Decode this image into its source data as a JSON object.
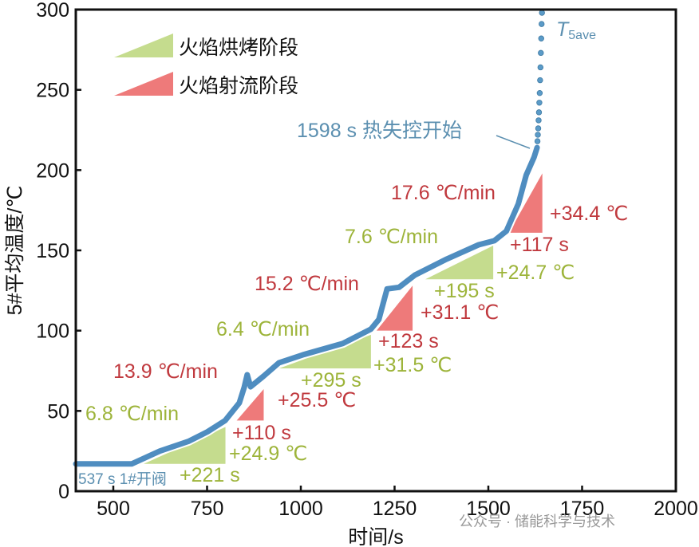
{
  "chart_data": {
    "type": "line",
    "xlabel": "时间/s",
    "ylabel": "5#平均温度/℃",
    "xlim": [
      400,
      2000
    ],
    "ylim": [
      0,
      300
    ],
    "xticks": [
      500,
      750,
      1000,
      1250,
      1500,
      1750,
      2000
    ],
    "yticks": [
      0,
      50,
      100,
      150,
      200,
      250,
      300
    ],
    "grid": false,
    "legend_position": "top-left",
    "legend": [
      {
        "label": "火焰烘烤阶段",
        "color": "#c5dc8e"
      },
      {
        "label": "火焰射流阶段",
        "color": "#ee7a7a"
      }
    ],
    "series": [
      {
        "name": "T5ave",
        "color": "#4f8dc0",
        "x": [
          400,
          549,
          624,
          700,
          751,
          798,
          836,
          849,
          857,
          866,
          900,
          942,
          1006,
          1112,
          1187,
          1208,
          1230,
          1262,
          1304,
          1389,
          1474,
          1516,
          1548,
          1580,
          1601,
          1622,
          1630
        ],
        "y": [
          17,
          17,
          25,
          31,
          37,
          44,
          55,
          64.6,
          72.5,
          65,
          71.5,
          80,
          85,
          92,
          101,
          107,
          126,
          127,
          134.6,
          144.6,
          153.5,
          156,
          162,
          179,
          197,
          208,
          214
        ],
        "dots_x": [
          1631,
          1632,
          1633,
          1634,
          1635,
          1636,
          1637,
          1638,
          1639,
          1640,
          1641,
          1642,
          1643
        ],
        "dots_y": [
          218,
          222,
          226,
          231,
          236,
          242,
          248,
          256,
          264,
          273,
          282,
          291,
          298
        ]
      }
    ],
    "stages": [
      {
        "kind": "baking",
        "x": [
          581,
          799
        ],
        "y": [
          17,
          40
        ],
        "rate": "6.8 ℃/min",
        "dt": "+221 s",
        "dT": "+24.9 ℃"
      },
      {
        "kind": "jet",
        "x": [
          829,
          901
        ],
        "y": [
          44,
          63.6
        ],
        "rate": "13.9 ℃/min",
        "dt": "+110 s",
        "dT": "+25.5 ℃"
      },
      {
        "kind": "baking",
        "x": [
          942,
          1187
        ],
        "y": [
          76.5,
          97.4
        ],
        "rate": "6.4 ℃/min",
        "dt": "+295 s",
        "dT": "+31.5 ℃"
      },
      {
        "kind": "jet",
        "x": [
          1202,
          1298
        ],
        "y": [
          100,
          128
        ],
        "rate": "15.2 ℃/min",
        "dt": "+123 s",
        "dT": "+31.1 ℃"
      },
      {
        "kind": "baking",
        "x": [
          1332,
          1513
        ],
        "y": [
          132,
          153
        ],
        "rate": "7.6 ℃/min",
        "dt": "+195 s",
        "dT": "+24.7 ℃"
      },
      {
        "kind": "jet",
        "x": [
          1555,
          1644
        ],
        "y": [
          161,
          198
        ],
        "rate": "17.6 ℃/min",
        "dt": "+117 s",
        "dT": "+34.4 ℃"
      }
    ],
    "annotations": {
      "series_label_main": "T",
      "series_label_sub": "5ave",
      "runaway": "1598 s 热失控开始",
      "valve": "537 s 1#开阀"
    }
  },
  "watermark": "公众号 · 储能科学与技术",
  "colors": {
    "baking": "#c5dc8e",
    "jet": "#ee7a7a",
    "line": "#4f8dc0"
  }
}
